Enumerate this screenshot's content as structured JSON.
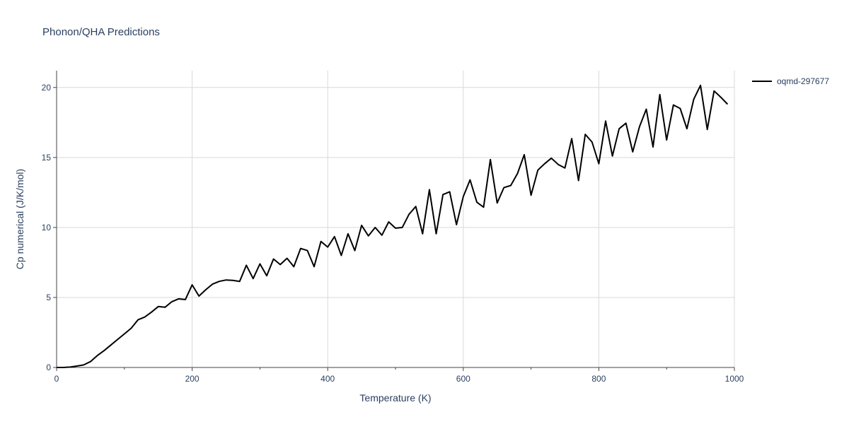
{
  "chart_data": {
    "type": "line",
    "title": "Phonon/QHA Predictions",
    "xlabel": "Temperature (K)",
    "ylabel": "Cp numerical (J/K/mol)",
    "xlim": [
      0,
      1000
    ],
    "ylim": [
      0,
      21.2
    ],
    "xticks": [
      0,
      200,
      400,
      600,
      800,
      1000
    ],
    "yticks": [
      0,
      5,
      10,
      15,
      20
    ],
    "grid": true,
    "legend_position": "top-right",
    "series": [
      {
        "name": "oqmd-297677",
        "color": "#000000",
        "x": [
          0,
          10,
          20,
          30,
          40,
          50,
          60,
          70,
          80,
          90,
          100,
          110,
          120,
          130,
          140,
          150,
          160,
          170,
          180,
          190,
          200,
          210,
          220,
          230,
          240,
          250,
          260,
          270,
          280,
          290,
          300,
          310,
          320,
          330,
          340,
          350,
          360,
          370,
          380,
          390,
          400,
          410,
          420,
          430,
          440,
          450,
          460,
          470,
          480,
          490,
          500,
          510,
          520,
          530,
          540,
          550,
          560,
          570,
          580,
          590,
          600,
          610,
          620,
          630,
          640,
          650,
          660,
          670,
          680,
          690,
          700,
          710,
          720,
          730,
          740,
          750,
          760,
          770,
          780,
          790,
          800,
          810,
          820,
          830,
          840,
          850,
          860,
          870,
          880,
          890,
          900,
          910,
          920,
          930,
          940,
          950,
          960,
          970,
          980,
          990
        ],
        "y": [
          0,
          0,
          0.03,
          0.1,
          0.18,
          0.42,
          0.85,
          1.2,
          1.6,
          2.0,
          2.4,
          2.8,
          3.4,
          3.6,
          3.95,
          4.35,
          4.3,
          4.7,
          4.9,
          4.85,
          5.9,
          5.1,
          5.55,
          5.95,
          6.15,
          6.25,
          6.22,
          6.15,
          7.3,
          6.35,
          7.4,
          6.55,
          7.75,
          7.35,
          7.8,
          7.2,
          8.5,
          8.35,
          7.2,
          9.0,
          8.6,
          9.35,
          8.0,
          9.55,
          8.35,
          10.15,
          9.4,
          10.0,
          9.45,
          10.4,
          9.95,
          10.0,
          10.95,
          11.5,
          9.55,
          12.7,
          9.55,
          12.35,
          12.55,
          10.2,
          12.2,
          13.4,
          11.8,
          11.45,
          14.85,
          11.75,
          12.85,
          13.0,
          13.85,
          15.2,
          12.3,
          14.1,
          14.55,
          14.95,
          14.5,
          14.25,
          16.35,
          13.35,
          16.65,
          16.1,
          14.55,
          17.6,
          15.1,
          17.05,
          17.45,
          15.4,
          17.2,
          18.45,
          15.75,
          19.5,
          16.25,
          18.75,
          18.5,
          17.05,
          19.15,
          20.15,
          17.0,
          19.75,
          19.3,
          18.8
        ]
      }
    ]
  }
}
